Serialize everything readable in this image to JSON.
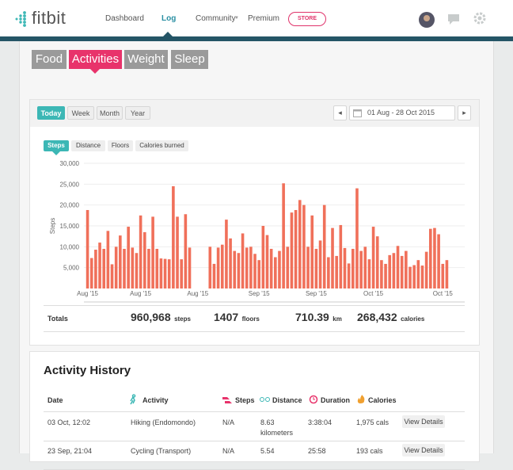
{
  "header": {
    "logo": "fitbit",
    "nav": [
      "Dashboard",
      "Log",
      "Community",
      "Premium"
    ],
    "store": "STORE"
  },
  "tabs": [
    "Food",
    "Activities",
    "Weight",
    "Sleep"
  ],
  "periods": [
    "Today",
    "Week",
    "Month",
    "Year"
  ],
  "date_range": "01 Aug - 28 Oct 2015",
  "metrics": [
    "Steps",
    "Distance",
    "Floors",
    "Calories burned"
  ],
  "chart": {
    "type": "bar",
    "y_label": "Steps",
    "color": "#f0705a",
    "categories": [
      "Aug '15",
      null,
      null,
      null,
      null,
      null,
      null,
      null,
      null,
      null,
      null,
      null,
      null,
      "Aug '15",
      null,
      null,
      null,
      null,
      null,
      null,
      null,
      null,
      null,
      null,
      null,
      null,
      null,
      "Aug '15",
      null,
      null,
      null,
      null,
      null,
      null,
      null,
      null,
      null,
      null,
      null,
      null,
      null,
      null,
      "Sep '15",
      null,
      null,
      null,
      null,
      null,
      null,
      null,
      null,
      null,
      null,
      null,
      null,
      null,
      "Sep '15",
      null,
      null,
      null,
      null,
      null,
      null,
      null,
      null,
      null,
      null,
      null,
      null,
      null,
      "Oct '15",
      null,
      null,
      null,
      null,
      null,
      null,
      null,
      null,
      null,
      null,
      null,
      null,
      null,
      null,
      null,
      null,
      "Oct '15",
      null
    ],
    "values": [
      18800,
      7300,
      9300,
      11000,
      9500,
      13800,
      5800,
      10000,
      12700,
      9500,
      14800,
      9800,
      8500,
      17500,
      13500,
      9500,
      17200,
      9500,
      7200,
      7100,
      7000,
      24500,
      17200,
      7000,
      17800,
      9800,
      0,
      0,
      0,
      0,
      10000,
      5900,
      9800,
      10500,
      16500,
      12000,
      9000,
      8500,
      13200,
      9800,
      10000,
      8300,
      6800,
      15000,
      12800,
      9500,
      7500,
      9000,
      25200,
      10000,
      18200,
      18800,
      21200,
      20000,
      10000,
      17500,
      9500,
      11500,
      20000,
      7500,
      14500,
      7800,
      15200,
      9700,
      6000,
      9500,
      24000,
      9000,
      10000,
      7000,
      14800,
      12500,
      6800,
      5900,
      8000,
      8500,
      10200,
      7800,
      9000,
      5200,
      5600,
      6800,
      5500,
      8800,
      14300,
      14500,
      13000,
      5900,
      6800
    ],
    "ylim": [
      0,
      30000
    ],
    "yticks": [
      {
        "value": 5000,
        "label": "5,000"
      },
      {
        "value": 10000,
        "label": "10,000"
      },
      {
        "value": 15000,
        "label": "15,000"
      },
      {
        "value": 20000,
        "label": "20,000"
      },
      {
        "value": 25000,
        "label": "25,000"
      },
      {
        "value": 30000,
        "label": "30,000"
      }
    ]
  },
  "totals": {
    "label": "Totals",
    "items": [
      {
        "value": "960,968",
        "unit": "steps"
      },
      {
        "value": "1407",
        "unit": "floors"
      },
      {
        "value": "710.39",
        "unit": "km"
      },
      {
        "value": "268,432",
        "unit": "calories"
      }
    ]
  },
  "history": {
    "title": "Activity History",
    "columns": [
      "Date",
      "Activity",
      "Steps",
      "Distance",
      "Duration",
      "Calories"
    ],
    "rows": [
      [
        "03 Oct, 12:02",
        "Hiking (Endomondo)",
        "N/A",
        "8.63 kilometers",
        "3:38:04",
        "1,975 cals"
      ],
      [
        "23 Sep, 21:04",
        "Cycling (Transport)",
        "N/A",
        "5.54",
        "25:58",
        "193 cals"
      ]
    ],
    "action": "View Details"
  }
}
